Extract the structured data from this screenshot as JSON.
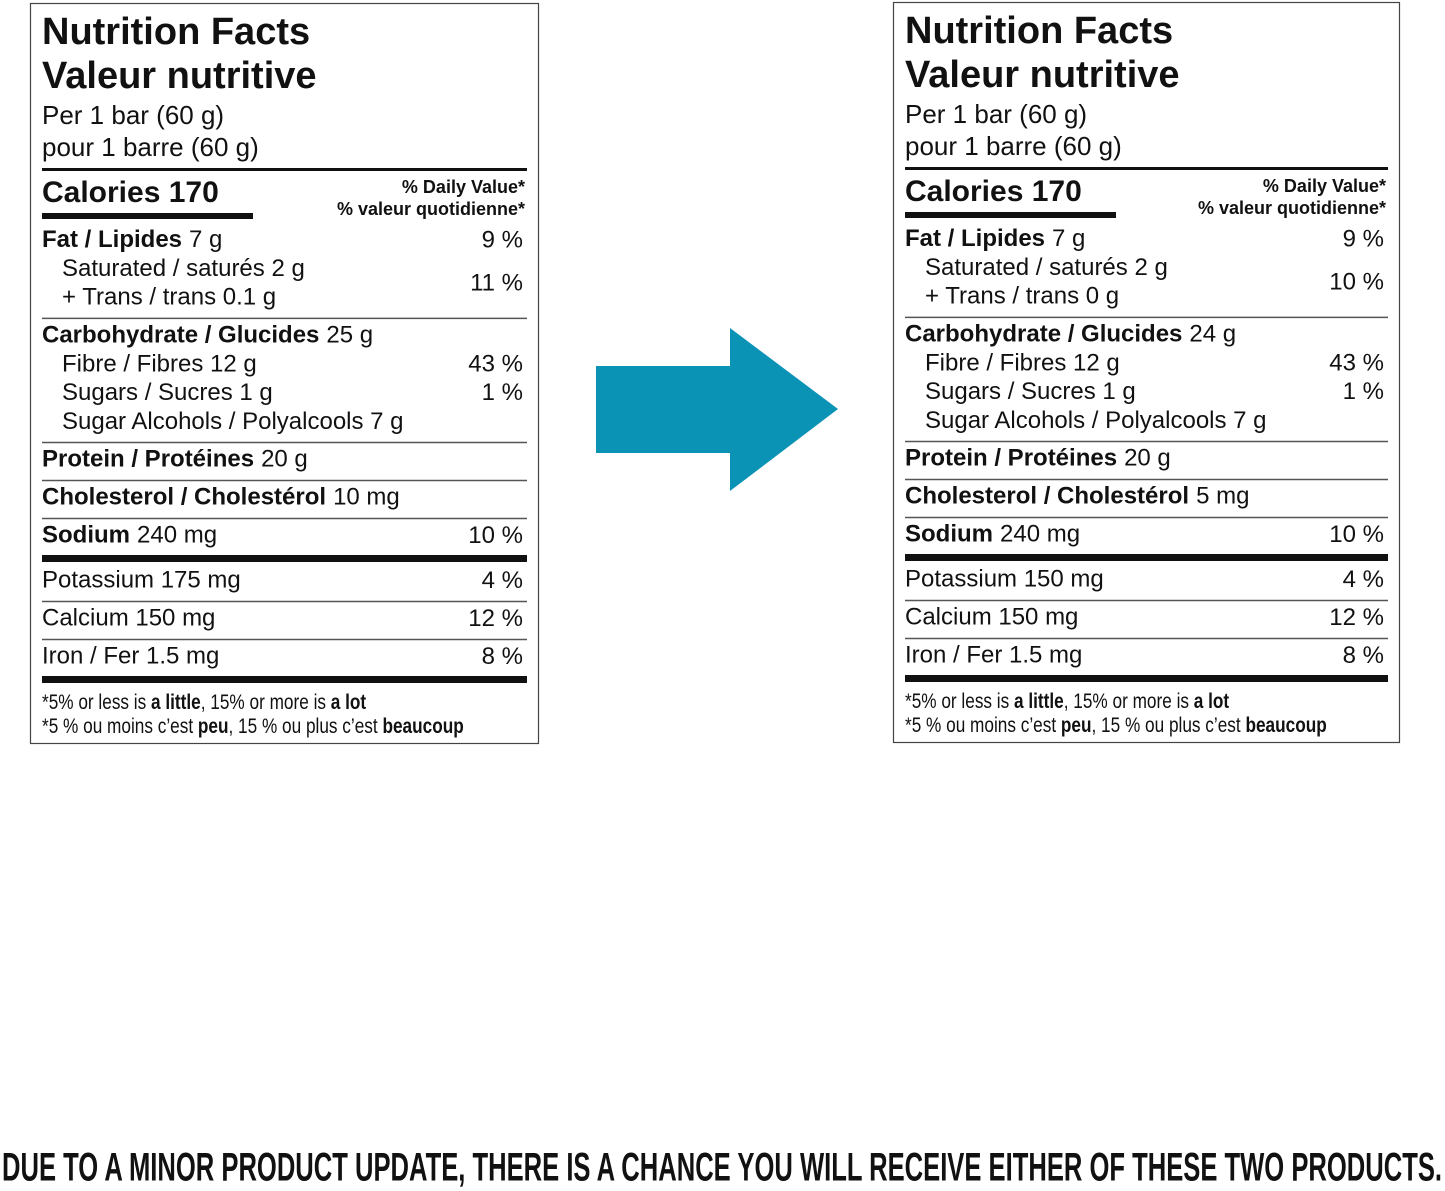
{
  "labels": [
    {
      "title": [
        "Nutrition Facts",
        "Valeur nutritive"
      ],
      "serving": [
        "Per 1 bar (60 g)",
        "pour 1 barre (60 g)"
      ],
      "calories": "Calories 170",
      "dv_header": [
        "% Daily Value*",
        "% valeur quotidienne*"
      ],
      "sections": [
        [
          {
            "name": "Fat / Lipides",
            "amount": "7 g",
            "dv": "9 %"
          },
          {
            "lines": [
              {
                "text": "Saturated / saturés 2 g"
              },
              {
                "text": "+ Trans / trans 0.1 g"
              }
            ],
            "dv": "11 %"
          }
        ],
        [
          {
            "name": "Carbohydrate / Glucides",
            "amount": "25 g"
          },
          {
            "lines": [
              {
                "text": "Fibre / Fibres 12 g",
                "dv": "43 %"
              },
              {
                "text": "Sugars / Sucres 1 g",
                "dv": "1 %"
              },
              {
                "text": "Sugar Alcohols / Polyalcools 7 g"
              }
            ]
          }
        ],
        [
          {
            "name": "Protein / Protéines",
            "amount": "20 g"
          }
        ],
        [
          {
            "name": "Cholesterol / Cholestérol",
            "amount": "10 mg"
          }
        ],
        [
          {
            "name": "Sodium",
            "amount": "240 mg",
            "dv": "10 %"
          }
        ],
        [
          {
            "text": "Potassium 175 mg",
            "dv": "4 %"
          }
        ],
        [
          {
            "text": "Calcium 150 mg",
            "dv": "12 %"
          }
        ],
        [
          {
            "text": "Iron / Fer 1.5 mg",
            "dv": "8 %"
          }
        ]
      ],
      "footnote": [
        [
          {
            "text": "*5% or less is "
          },
          {
            "text": "a little",
            "bold": true
          },
          {
            "text": ", 15% or more is "
          },
          {
            "text": "a lot",
            "bold": true
          }
        ],
        [
          {
            "text": "*5 % ou moins c’est "
          },
          {
            "text": "peu",
            "bold": true
          },
          {
            "text": ", 15 % ou plus c’est "
          },
          {
            "text": "beaucoup",
            "bold": true
          }
        ]
      ]
    },
    {
      "title": [
        "Nutrition Facts",
        "Valeur nutritive"
      ],
      "serving": [
        "Per 1 bar (60 g)",
        "pour 1 barre (60 g)"
      ],
      "calories": "Calories 170",
      "dv_header": [
        "% Daily Value*",
        "% valeur quotidienne*"
      ],
      "sections": [
        [
          {
            "name": "Fat / Lipides",
            "amount": "7 g",
            "dv": "9 %"
          },
          {
            "lines": [
              {
                "text": "Saturated / saturés 2 g"
              },
              {
                "text": "+ Trans / trans 0 g"
              }
            ],
            "dv": "10 %"
          }
        ],
        [
          {
            "name": "Carbohydrate / Glucides",
            "amount": "24 g"
          },
          {
            "lines": [
              {
                "text": "Fibre / Fibres 12 g",
                "dv": "43 %"
              },
              {
                "text": "Sugars / Sucres 1 g",
                "dv": "1 %"
              },
              {
                "text": "Sugar Alcohols / Polyalcools 7 g"
              }
            ]
          }
        ],
        [
          {
            "name": "Protein / Protéines",
            "amount": "20 g"
          }
        ],
        [
          {
            "name": "Cholesterol / Cholestérol",
            "amount": "5 mg"
          }
        ],
        [
          {
            "name": "Sodium",
            "amount": "240 mg",
            "dv": "10 %"
          }
        ],
        [
          {
            "text": "Potassium 150 mg",
            "dv": "4 %"
          }
        ],
        [
          {
            "text": "Calcium 150 mg",
            "dv": "12 %"
          }
        ],
        [
          {
            "text": "Iron / Fer 1.5 mg",
            "dv": "8 %"
          }
        ]
      ],
      "footnote": [
        [
          {
            "text": "*5% or less is "
          },
          {
            "text": "a little",
            "bold": true
          },
          {
            "text": ", 15% or more is "
          },
          {
            "text": "a lot",
            "bold": true
          }
        ],
        [
          {
            "text": "*5 % ou moins c’est "
          },
          {
            "text": "peu",
            "bold": true
          },
          {
            "text": ", 15 % ou plus c’est "
          },
          {
            "text": "beaucoup",
            "bold": true
          }
        ]
      ]
    }
  ],
  "caption": "DUE TO A MINOR PRODUCT UPDATE, THERE IS A CHANCE YOU WILL RECEIVE EITHER OF THESE TWO PRODUCTS."
}
